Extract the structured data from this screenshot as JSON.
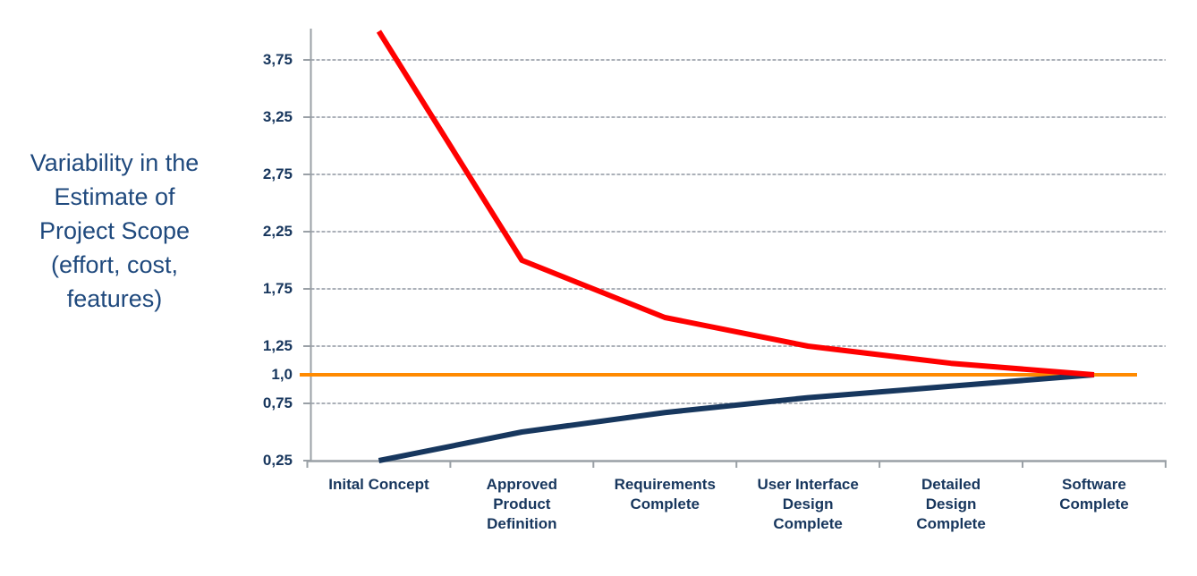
{
  "chart_data": {
    "type": "line",
    "title": "",
    "xlabel": "",
    "ylabel": "Variability in the\nEstimate of\nProject Scope\n(effort, cost,\nfeatures)",
    "categories": [
      "Inital Concept",
      "Approved\nProduct\nDefinition",
      "Requirements\nComplete",
      "User Interface\nDesign\nComplete",
      "Detailed\nDesign\nComplete",
      "Software\nComplete"
    ],
    "series": [
      {
        "name": "upper-estimate-bound",
        "color": "#FF0000",
        "values": [
          4.0,
          2.0,
          1.5,
          1.25,
          1.1,
          1.0
        ]
      },
      {
        "name": "lower-estimate-bound",
        "color": "#17375E",
        "values": [
          0.25,
          0.5,
          0.67,
          0.8,
          0.9,
          1.0
        ]
      }
    ],
    "reference_line": {
      "name": "no-variability-baseline",
      "value": 1.0,
      "color": "#FF8A00"
    },
    "y_ticks": [
      {
        "value": 3.75,
        "label": "3,75"
      },
      {
        "value": 3.25,
        "label": "3,25"
      },
      {
        "value": 2.75,
        "label": "2,75"
      },
      {
        "value": 2.25,
        "label": "2,25"
      },
      {
        "value": 1.75,
        "label": "1,75"
      },
      {
        "value": 1.25,
        "label": "1,25"
      },
      {
        "value": 1.0,
        "label": "1,0"
      },
      {
        "value": 0.75,
        "label": "0,75"
      },
      {
        "value": 0.25,
        "label": "0,25"
      }
    ],
    "y_gridlines_at": [
      3.75,
      3.25,
      2.75,
      2.25,
      1.75,
      1.25,
      0.75
    ],
    "ylim": [
      0.25,
      4.02
    ],
    "grid": "horizontal-dashed",
    "legend": "none",
    "colors": {
      "axis": "#9AA0A6",
      "gridline": "#ABB0B8",
      "tick_label": "#17365D",
      "category_label": "#17365D",
      "ylabel_text": "#1F497D"
    }
  }
}
